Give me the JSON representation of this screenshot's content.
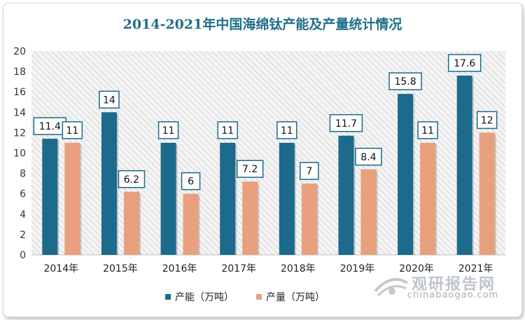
{
  "chart_data": {
    "type": "bar",
    "title": "2014-2021年中国海绵钛产能及产量统计情况",
    "categories": [
      "2014年",
      "2015年",
      "2016年",
      "2017年",
      "2018年",
      "2019年",
      "2020年",
      "2021年"
    ],
    "series": [
      {
        "name": "产能（万吨）",
        "values": [
          11.4,
          14,
          11,
          11,
          11,
          11.7,
          15.8,
          17.6
        ],
        "color": "#1c6a8c"
      },
      {
        "name": "产量（万吨）",
        "values": [
          11,
          6.2,
          6,
          7.2,
          7,
          8.4,
          11,
          12
        ],
        "color": "#e8a07f"
      }
    ],
    "ylim": [
      0,
      20
    ],
    "yticks": [
      0,
      2,
      4,
      6,
      8,
      10,
      12,
      14,
      16,
      18,
      20
    ],
    "legend": "bottom",
    "plot_background": "hatched gray"
  },
  "watermark": {
    "brand": "观研报告网",
    "url": "chinabaogao.com"
  }
}
